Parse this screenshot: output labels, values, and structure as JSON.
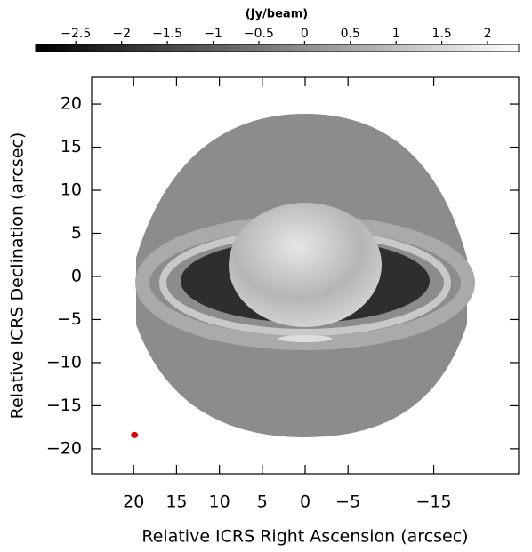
{
  "chart_data": {
    "type": "image",
    "xlabel": "Relative ICRS Right Ascension (arcsec)",
    "ylabel": "Relative ICRS Declination (arcsec)",
    "xlim": [
      24.9,
      -24.9
    ],
    "xticks": [
      20,
      15,
      10,
      5,
      0,
      -5,
      -15
    ],
    "ylim": [
      -22.9,
      23.1
    ],
    "yticks": [
      20,
      15,
      10,
      5,
      0,
      -5,
      -10,
      -15,
      -20
    ],
    "colorbar_label": "(Jy/beam)",
    "clim": [
      -2.94,
      2.34
    ],
    "cticks": [
      -2.5,
      -2,
      -1.5,
      -1,
      -0.5,
      0,
      0.5,
      1,
      1.5,
      2
    ],
    "beam": {
      "x": 19.9,
      "y": -18.4,
      "color": "#e00000"
    }
  }
}
